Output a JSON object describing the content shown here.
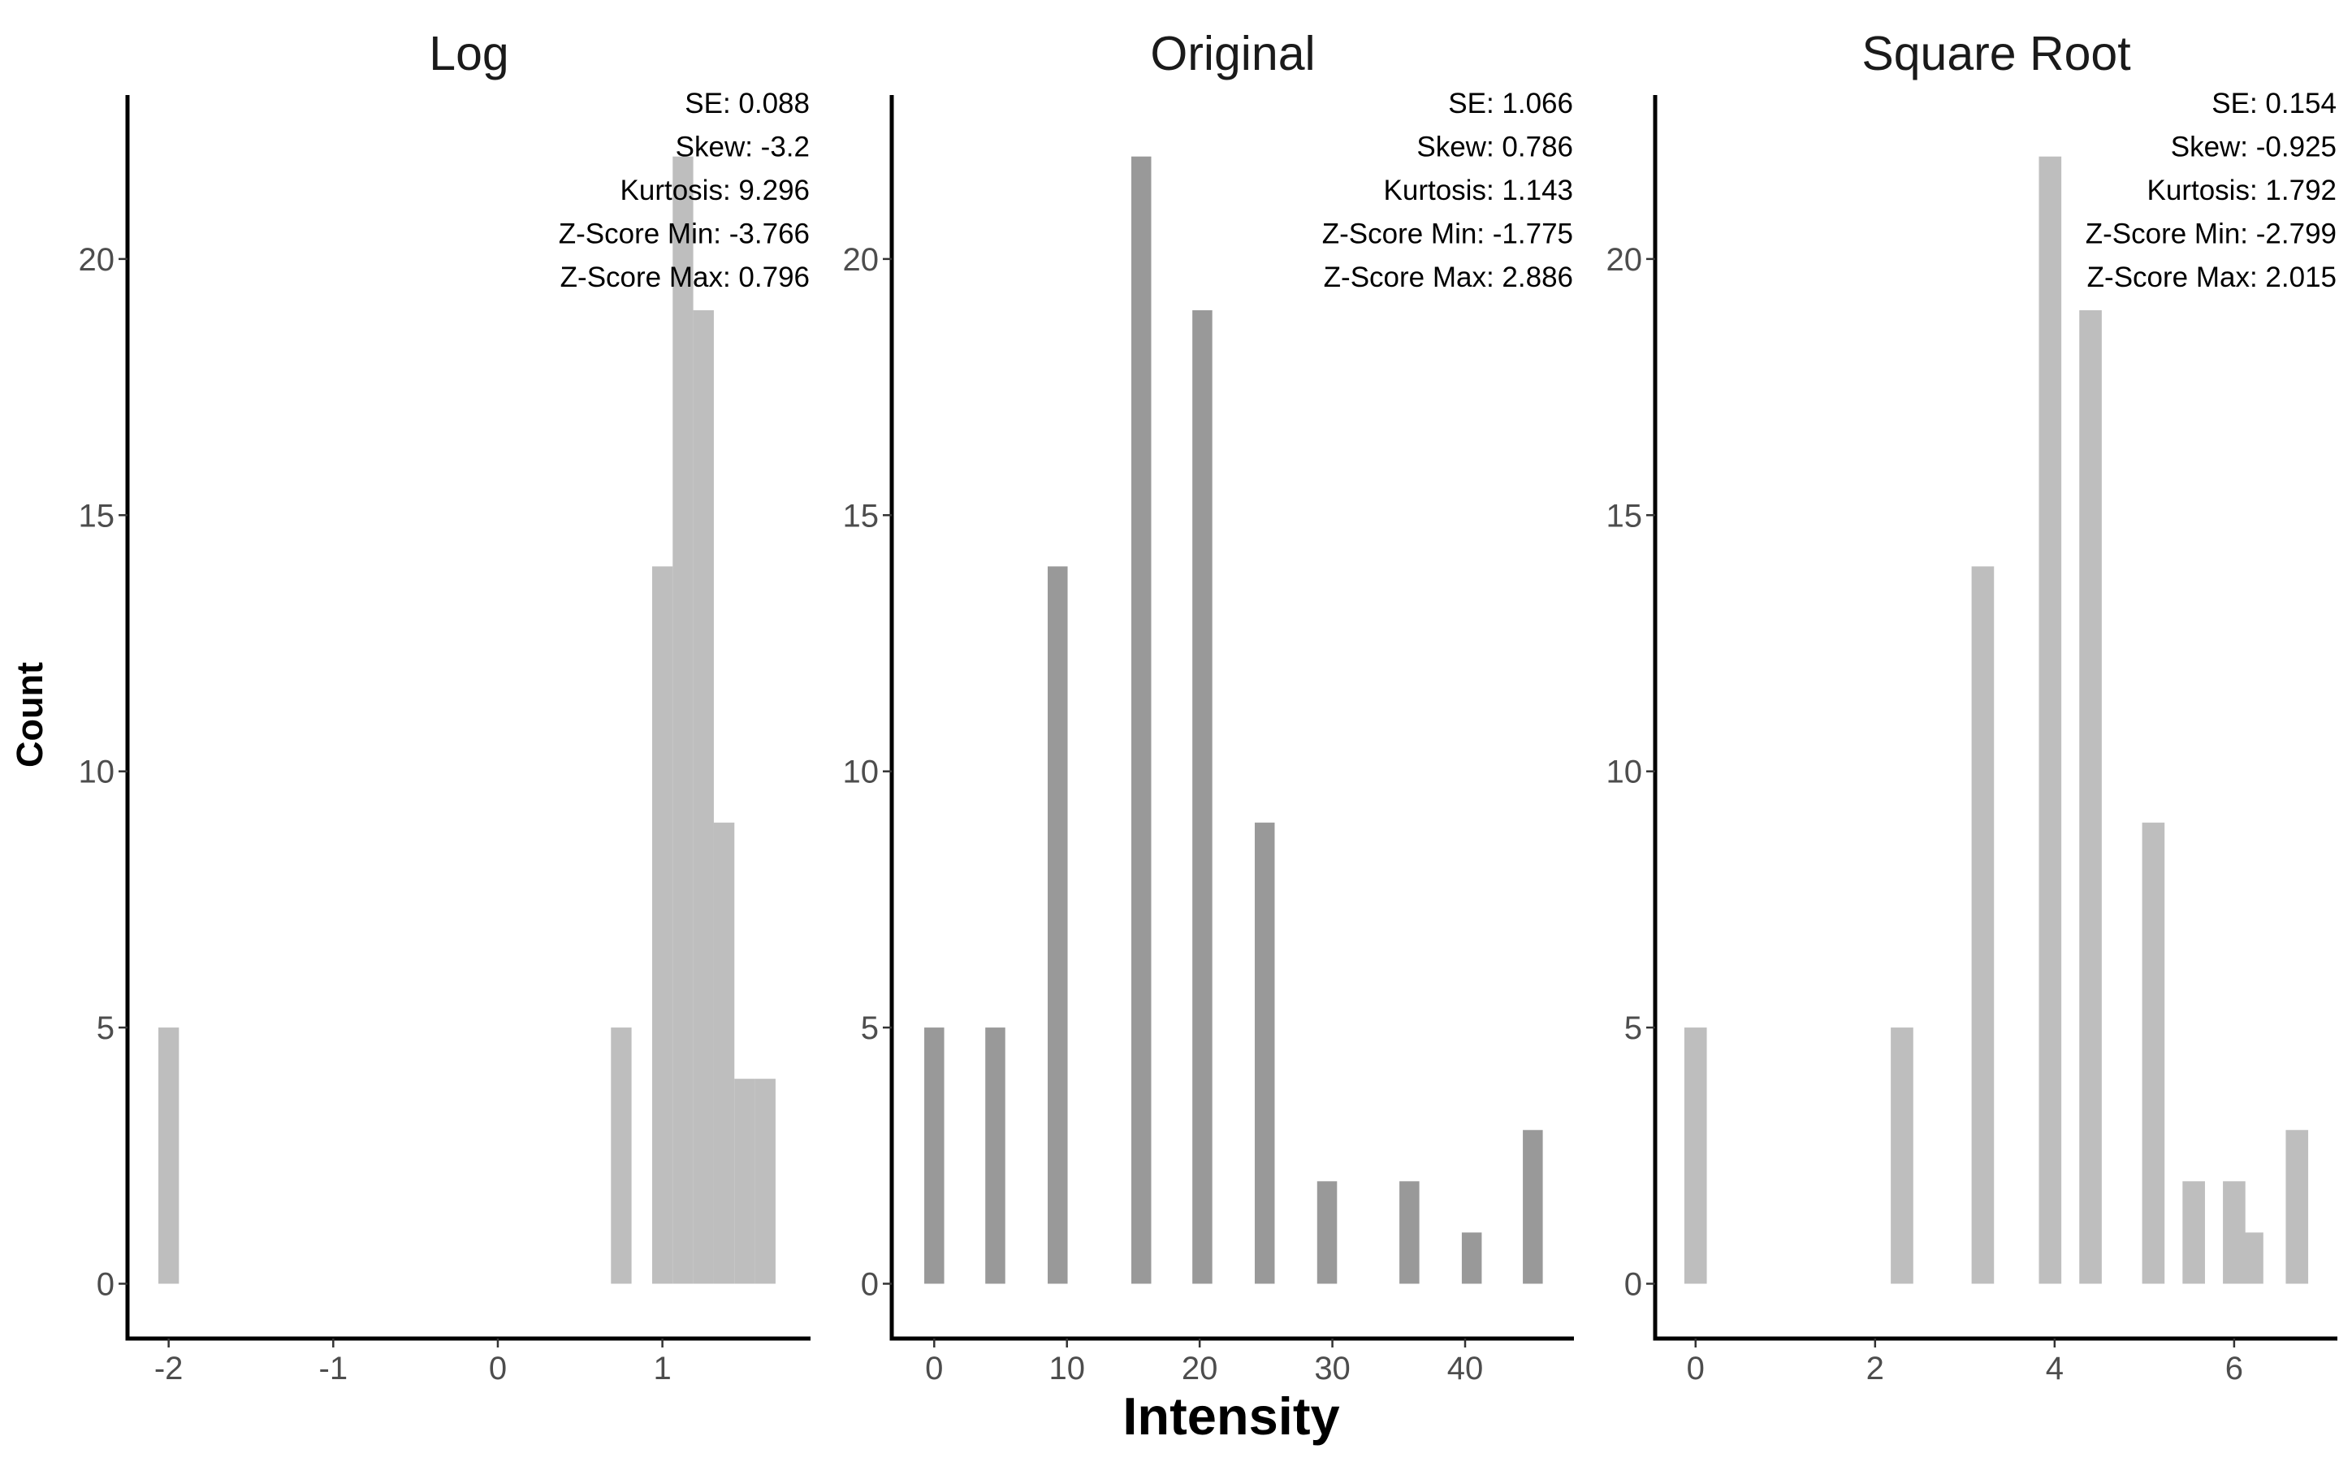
{
  "xlabel": "Intensity",
  "ylabel": "Count",
  "chart_data": [
    {
      "type": "bar",
      "title": "Log",
      "color": "#bebebe",
      "xlim": [
        -2.25,
        1.9
      ],
      "ylim": [
        -1.07,
        23.2
      ],
      "xticks": [
        -2,
        -1,
        0,
        1
      ],
      "yticks": [
        0,
        5,
        10,
        15,
        20
      ],
      "bin_width": 0.125,
      "bins": [
        {
          "x": -2.0,
          "count": 5
        },
        {
          "x": 0.75,
          "count": 5
        },
        {
          "x": 1.0,
          "count": 14
        },
        {
          "x": 1.125,
          "count": 22
        },
        {
          "x": 1.25,
          "count": 19
        },
        {
          "x": 1.375,
          "count": 9
        },
        {
          "x": 1.5,
          "count": 4
        },
        {
          "x": 1.625,
          "count": 4
        }
      ],
      "stats": [
        "SE: 0.088",
        "Skew: -3.2",
        "Kurtosis: 9.296",
        "Z-Score Min: -3.766",
        "Z-Score Max: 0.796"
      ]
    },
    {
      "type": "bar",
      "title": "Original",
      "color": "#999999",
      "xlim": [
        -3.2,
        48.2
      ],
      "ylim": [
        -1.07,
        23.2
      ],
      "xticks": [
        0,
        10,
        20,
        30,
        40
      ],
      "yticks": [
        0,
        5,
        10,
        15,
        20
      ],
      "bin_width": 1.5,
      "bins": [
        {
          "x": 0,
          "count": 5
        },
        {
          "x": 4.6,
          "count": 5
        },
        {
          "x": 9.3,
          "count": 14
        },
        {
          "x": 15.6,
          "count": 22
        },
        {
          "x": 20.2,
          "count": 19
        },
        {
          "x": 24.9,
          "count": 9
        },
        {
          "x": 29.6,
          "count": 2
        },
        {
          "x": 35.8,
          "count": 2
        },
        {
          "x": 40.5,
          "count": 1
        },
        {
          "x": 45.1,
          "count": 3
        }
      ],
      "stats": [
        "SE: 1.066",
        "Skew: 0.786",
        "Kurtosis: 1.143",
        "Z-Score Min: -1.775",
        "Z-Score Max: 2.886"
      ]
    },
    {
      "type": "bar",
      "title": "Square Root",
      "color": "#bebebe",
      "xlim": [
        -0.45,
        7.15
      ],
      "ylim": [
        -1.07,
        23.2
      ],
      "xticks": [
        0,
        2,
        4,
        6
      ],
      "yticks": [
        0,
        5,
        10,
        15,
        20
      ],
      "bin_width": 0.25,
      "bins": [
        {
          "x": 0.0,
          "count": 5
        },
        {
          "x": 2.3,
          "count": 5
        },
        {
          "x": 3.2,
          "count": 14
        },
        {
          "x": 3.95,
          "count": 22
        },
        {
          "x": 4.4,
          "count": 19
        },
        {
          "x": 5.1,
          "count": 9
        },
        {
          "x": 5.55,
          "count": 2
        },
        {
          "x": 6.0,
          "count": 2
        },
        {
          "x": 6.2,
          "count": 1
        },
        {
          "x": 6.7,
          "count": 3
        }
      ],
      "stats": [
        "SE: 0.154",
        "Skew: -0.925",
        "Kurtosis: 1.792",
        "Z-Score Min: -2.799",
        "Z-Score Max: 2.015"
      ]
    }
  ]
}
